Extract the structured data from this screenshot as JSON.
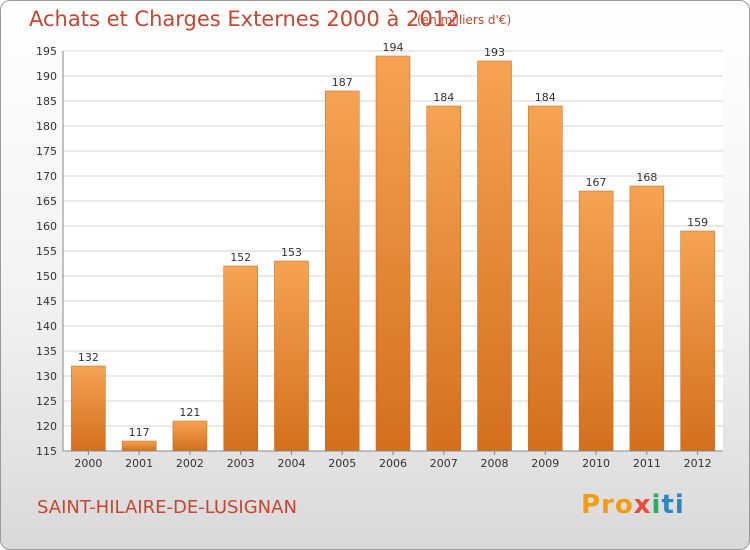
{
  "chart_data": {
    "type": "bar",
    "title": "Achats et Charges Externes 2000 à 2012",
    "subtitle": "(en milliers d'€)",
    "categories": [
      "2000",
      "2001",
      "2002",
      "2003",
      "2004",
      "2005",
      "2006",
      "2007",
      "2008",
      "2009",
      "2010",
      "2011",
      "2012"
    ],
    "values": [
      132,
      117,
      121,
      152,
      153,
      187,
      194,
      184,
      193,
      184,
      167,
      168,
      159
    ],
    "ylim": [
      115,
      195
    ],
    "yticks": [
      115,
      120,
      125,
      130,
      135,
      140,
      145,
      150,
      155,
      160,
      165,
      170,
      175,
      180,
      185,
      190,
      195
    ],
    "grid": true,
    "bar_color": "#f0973f",
    "bar_color_dark": "#d8731f"
  },
  "footer": {
    "commune": "SAINT-HILAIRE-DE-LUSIGNAN",
    "logo_parts": [
      "Pro",
      "x",
      "i",
      "ti"
    ]
  }
}
